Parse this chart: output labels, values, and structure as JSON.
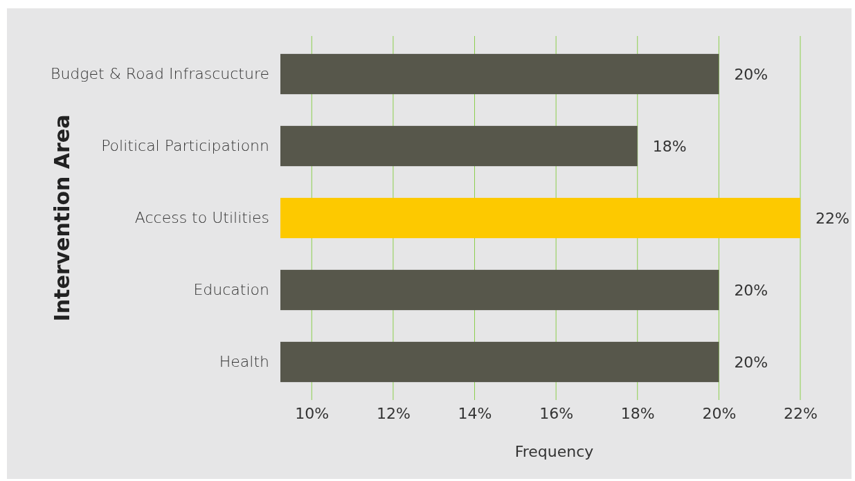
{
  "chart_data": {
    "type": "bar",
    "orientation": "horizontal",
    "xlabel": "Frequency",
    "ylabel": "Intervention Area",
    "categories": [
      "Budget & Road Infrascucture",
      "Political Participationn",
      "Access to Utilities",
      "Education",
      "Health"
    ],
    "values": [
      20,
      18,
      22,
      20,
      20
    ],
    "colors": [
      "#57574b",
      "#57574b",
      "#fdc900",
      "#57574b",
      "#57574b"
    ],
    "value_labels": [
      "20%",
      "18%",
      "22%",
      "20%",
      "20%"
    ],
    "xlim": [
      9.23,
      22
    ],
    "xticks": [
      {
        "value": 10,
        "label": "10%"
      },
      {
        "value": 12,
        "label": "12%"
      },
      {
        "value": 14,
        "label": "14%"
      },
      {
        "value": 16,
        "label": "16%"
      },
      {
        "value": 18,
        "label": "18%"
      },
      {
        "value": 20,
        "label": "20%"
      },
      {
        "value": 22,
        "label": "22%"
      }
    ],
    "grid": "x"
  }
}
